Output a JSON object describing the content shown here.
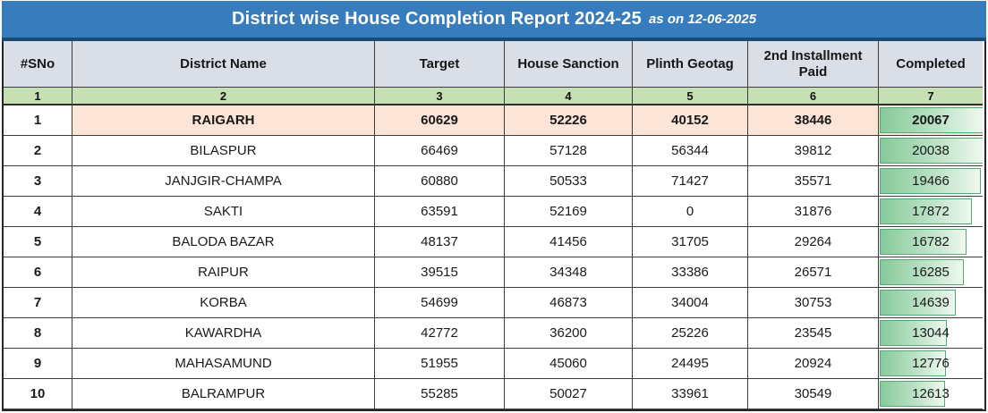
{
  "title": {
    "main": "District wise House Completion Report 2024-25",
    "suffix": "as on 12-06-2025"
  },
  "colors": {
    "title_bg": "#377DBE",
    "title_underline": "#1E4A72",
    "header_bg": "#D9DEE7",
    "index_row_bg": "#C6E0B4",
    "highlight_row_bg": "#FCE4D6",
    "bar_border": "#55A873",
    "bar_fill_start": "#86CA9A",
    "bar_fill_end": "#EEF8F0"
  },
  "table": {
    "columns": [
      "#SNo",
      "District Name",
      "Target",
      "House Sanction",
      "Plinth Geotag",
      "2nd Installment Paid",
      "Completed"
    ],
    "column_keys": [
      "sno",
      "district-name",
      "target",
      "house-sanction",
      "plinth-geotag",
      "2nd-installment-paid",
      "completed"
    ],
    "column_indexes": [
      "1",
      "2",
      "3",
      "4",
      "5",
      "6",
      "7"
    ],
    "bar_max": 20067,
    "rows": [
      {
        "sno": "1",
        "district": "RAIGARH",
        "target": "60629",
        "house_sanction": "52226",
        "plinth_geotag": "40152",
        "second_installment_paid": "38446",
        "completed": "20067",
        "highlighted": true
      },
      {
        "sno": "2",
        "district": "BILASPUR",
        "target": "66469",
        "house_sanction": "57128",
        "plinth_geotag": "56344",
        "second_installment_paid": "39812",
        "completed": "20038",
        "highlighted": false
      },
      {
        "sno": "3",
        "district": "JANJGIR-CHAMPA",
        "target": "60880",
        "house_sanction": "50533",
        "plinth_geotag": "71427",
        "second_installment_paid": "35571",
        "completed": "19466",
        "highlighted": false
      },
      {
        "sno": "4",
        "district": "SAKTI",
        "target": "63591",
        "house_sanction": "52169",
        "plinth_geotag": "0",
        "second_installment_paid": "31876",
        "completed": "17872",
        "highlighted": false
      },
      {
        "sno": "5",
        "district": "BALODA BAZAR",
        "target": "48137",
        "house_sanction": "41456",
        "plinth_geotag": "31705",
        "second_installment_paid": "29264",
        "completed": "16782",
        "highlighted": false
      },
      {
        "sno": "6",
        "district": "RAIPUR",
        "target": "39515",
        "house_sanction": "34348",
        "plinth_geotag": "33386",
        "second_installment_paid": "26571",
        "completed": "16285",
        "highlighted": false
      },
      {
        "sno": "7",
        "district": "KORBA",
        "target": "54699",
        "house_sanction": "46873",
        "plinth_geotag": "34004",
        "second_installment_paid": "30753",
        "completed": "14639",
        "highlighted": false
      },
      {
        "sno": "8",
        "district": "KAWARDHA",
        "target": "42772",
        "house_sanction": "36200",
        "plinth_geotag": "25226",
        "second_installment_paid": "23545",
        "completed": "13044",
        "highlighted": false
      },
      {
        "sno": "9",
        "district": "MAHASAMUND",
        "target": "51955",
        "house_sanction": "45060",
        "plinth_geotag": "24495",
        "second_installment_paid": "20924",
        "completed": "12776",
        "highlighted": false
      },
      {
        "sno": "10",
        "district": "BALRAMPUR",
        "target": "55285",
        "house_sanction": "50027",
        "plinth_geotag": "33961",
        "second_installment_paid": "30549",
        "completed": "12613",
        "highlighted": false
      }
    ]
  }
}
